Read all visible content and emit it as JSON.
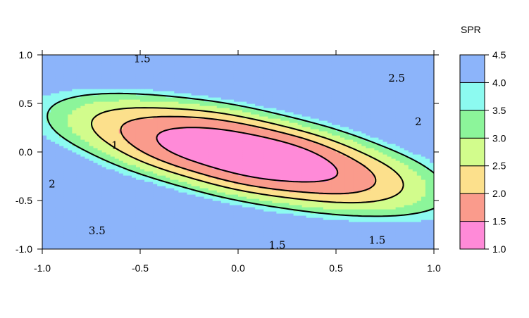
{
  "chart_data": {
    "type": "heatmap",
    "subtype": "filled-contour",
    "xlim": [
      -1.0,
      1.0
    ],
    "ylim": [
      -1.0,
      1.0
    ],
    "x_ticks": [
      "-1.0",
      "-0.5",
      "0.0",
      "0.5",
      "1.0"
    ],
    "y_ticks": [
      "1.0",
      "0.5",
      "0.0",
      "-0.5",
      "-1.0"
    ],
    "x_tick_values": [
      -1.0,
      -0.5,
      0.0,
      0.5,
      1.0
    ],
    "y_tick_values": [
      1.0,
      0.5,
      0.0,
      -0.5,
      -1.0
    ],
    "grid": false,
    "legend": {
      "title": "SPR",
      "placement": "right",
      "breaks": [
        1.0,
        1.5,
        2.0,
        2.5,
        3.0,
        3.5,
        4.0,
        4.5
      ],
      "labels": [
        "4.5",
        "4.0",
        "3.5",
        "3.0",
        "2.5",
        "2.0",
        "1.5",
        "1.0"
      ],
      "colors": [
        "#FF8AD8",
        "#FA9B8C",
        "#FCE08C",
        "#D2FC8C",
        "#8CF59A",
        "#8CFAF0",
        "#8CB4FA"
      ]
    },
    "surface": {
      "formula": "1 + 2.2*((u/1.05)^2 + (v/0.42)^2), u=(x-0.05)cos(t)+(y+0.03)sin(t), v=-(x-0.05)sin(t)+(y+0.03)cos(t), t=-0.45 rad"
    },
    "contour_levels": [
      1.0,
      1.5,
      2.0,
      2.5,
      3.5
    ],
    "contour_labels": [
      {
        "text": "1",
        "x": -0.63,
        "y": 0.07
      },
      {
        "text": "1.5",
        "x": -0.49,
        "y": 0.96
      },
      {
        "text": "1.5",
        "x": 0.2,
        "y": -0.96
      },
      {
        "text": "1.5",
        "x": 0.71,
        "y": -0.91
      },
      {
        "text": "2",
        "x": -0.95,
        "y": -0.33
      },
      {
        "text": "2",
        "x": 0.92,
        "y": 0.31
      },
      {
        "text": "2.5",
        "x": 0.81,
        "y": 0.76
      },
      {
        "text": "3.5",
        "x": -0.72,
        "y": -0.81
      }
    ]
  }
}
